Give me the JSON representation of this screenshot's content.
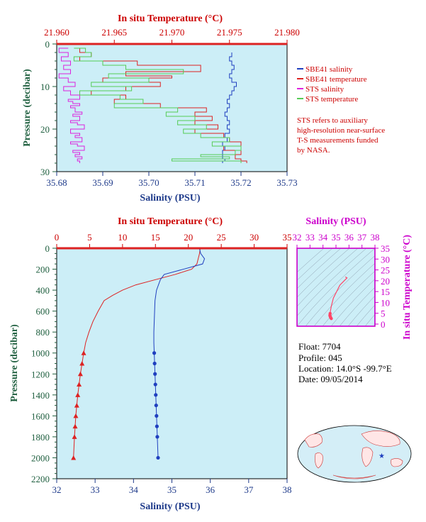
{
  "chart_data": [
    {
      "id": "top",
      "type": "line",
      "x_bottom": {
        "label": "Salinity (PSU)",
        "range": [
          35.68,
          35.73
        ],
        "ticks": [
          "35.68",
          "35.69",
          "35.70",
          "35.71",
          "35.72",
          "35.73"
        ]
      },
      "x_top": {
        "label": "In situ Temperature (°C)",
        "range": [
          21.96,
          21.98
        ],
        "ticks": [
          "21.960",
          "21.965",
          "21.970",
          "21.975",
          "21.980"
        ]
      },
      "y": {
        "label": "Pressure (decibar)",
        "range": [
          0,
          30
        ],
        "inverted": true,
        "ticks": [
          "0",
          "10",
          "20",
          "30"
        ]
      },
      "legend": {
        "position": "right",
        "items": [
          {
            "label": "SBE41 salinity",
            "color": "#1f3fbf"
          },
          {
            "label": "SBE41 temperature",
            "color": "#dd2222"
          },
          {
            "label": "STS salinity",
            "color": "#dd22dd"
          },
          {
            "label": "STS temperature",
            "color": "#55cc55"
          }
        ]
      },
      "note": [
        "STS refers to auxiliary",
        "high-resolution near-surface",
        "T-S measurements funded",
        "by NASA."
      ],
      "series": [
        {
          "name": "SBE41 salinity",
          "color": "#1f3fbf",
          "axis": "salinity",
          "x": [
            35.718,
            35.718,
            35.7175,
            35.718,
            35.7185,
            35.718,
            35.7175,
            35.718,
            35.719,
            35.7185,
            35.718,
            35.7175,
            35.717,
            35.7175,
            35.717,
            35.7165,
            35.717,
            35.7175,
            35.717,
            35.7175,
            35.7165,
            35.717,
            35.716,
            35.7165,
            35.716,
            35.716,
            35.7165,
            35.716
          ],
          "y": [
            2,
            3,
            4,
            5,
            6,
            7,
            8,
            9,
            10,
            11,
            12,
            13,
            14,
            15,
            16,
            17,
            18,
            19,
            20,
            21,
            22,
            23,
            24,
            25,
            26,
            27,
            27.5,
            28
          ]
        },
        {
          "name": "SBE41 temperature",
          "color": "#dd2222",
          "axis": "temperature",
          "x": [
            21.9625,
            21.962,
            21.963,
            21.962,
            21.967,
            21.9725,
            21.966,
            21.97,
            21.964,
            21.969,
            21.966,
            21.963,
            21.966,
            21.965,
            21.969,
            21.973,
            21.972,
            21.9735,
            21.972,
            21.974,
            21.972,
            21.9745,
            21.975,
            21.976,
            21.9745,
            21.976,
            21.9755,
            21.976,
            21.9765
          ],
          "y": [
            1,
            2,
            3,
            4,
            5,
            6.5,
            7.5,
            8,
            9,
            10,
            11,
            12,
            13,
            14,
            15,
            16,
            17,
            18,
            19,
            20,
            21,
            22,
            23,
            24,
            25,
            26,
            27,
            27.5,
            28
          ]
        },
        {
          "name": "STS salinity",
          "color": "#dd22dd",
          "axis": "salinity",
          "x": [
            35.6825,
            35.6805,
            35.6825,
            35.681,
            35.683,
            35.6815,
            35.683,
            35.6805,
            35.6825,
            35.684,
            35.6815,
            35.683,
            35.685,
            35.6825,
            35.6835,
            35.685,
            35.683,
            35.684,
            35.6855,
            35.6835,
            35.685,
            35.683,
            35.6845,
            35.686,
            35.683,
            35.685,
            35.684,
            35.6855,
            35.683,
            35.6845,
            35.686,
            35.6835,
            35.685,
            35.684,
            35.6855,
            35.6845,
            35.685
          ],
          "y": [
            1,
            2,
            3,
            4,
            5,
            6,
            7,
            8,
            9,
            10,
            11,
            12,
            13,
            13.5,
            14,
            14.5,
            15,
            16,
            16.5,
            17,
            18,
            18.5,
            19,
            20,
            21,
            21.5,
            22,
            23,
            23.5,
            24,
            25,
            25.5,
            26,
            26.5,
            27,
            27.5,
            28
          ]
        },
        {
          "name": "STS temperature",
          "color": "#55cc55",
          "axis": "temperature",
          "x": [
            21.9615,
            21.9625,
            21.963,
            21.9615,
            21.964,
            21.966,
            21.971,
            21.9645,
            21.968,
            21.963,
            21.9665,
            21.962,
            21.9655,
            21.9675,
            21.965,
            21.9705,
            21.9695,
            21.972,
            21.9705,
            21.973,
            21.971,
            21.9725,
            21.975,
            21.9735,
            21.976,
            21.9755,
            21.9725,
            21.975,
            21.97,
            21.976
          ],
          "y": [
            1,
            2,
            3,
            4,
            5,
            6,
            7,
            8,
            9,
            10,
            11,
            12,
            13,
            14,
            15,
            16,
            17,
            18,
            19,
            20,
            21,
            22,
            23,
            24,
            25,
            26,
            26.5,
            27,
            27.5,
            28
          ]
        }
      ]
    },
    {
      "id": "profile",
      "type": "line",
      "x_bottom": {
        "label": "Salinity (PSU)",
        "range": [
          32,
          38
        ],
        "ticks": [
          "32",
          "33",
          "34",
          "35",
          "36",
          "37",
          "38"
        ]
      },
      "x_top": {
        "label": "In situ Temperature (°C)",
        "range": [
          0,
          35
        ],
        "ticks": [
          "0",
          "5",
          "10",
          "15",
          "20",
          "25",
          "30",
          "35"
        ]
      },
      "y": {
        "label": "Pressure (decibar)",
        "range": [
          0,
          2200
        ],
        "inverted": true,
        "ticks": [
          "0",
          "200",
          "400",
          "600",
          "800",
          "1000",
          "1200",
          "1400",
          "1600",
          "1800",
          "2000",
          "2200"
        ]
      },
      "series": [
        {
          "name": "",
          "color": "#dd2222",
          "axis": "temperature",
          "temperature": [
            21.8,
            21.7,
            21.5,
            21.3,
            20.5,
            18.0,
            15.0,
            12.0,
            10.0,
            8.5,
            7.2,
            6.3,
            5.5,
            4.9,
            4.4,
            4.1,
            3.85,
            3.6,
            3.4,
            3.2,
            3.05,
            2.9,
            2.8,
            2.7,
            2.55
          ],
          "pressure": [
            5,
            50,
            100,
            150,
            200,
            250,
            300,
            350,
            400,
            450,
            500,
            600,
            700,
            800,
            900,
            1000,
            1100,
            1200,
            1300,
            1400,
            1500,
            1600,
            1700,
            1800,
            2000
          ]
        },
        {
          "name": "",
          "color": "#1f3fbf",
          "axis": "salinity",
          "salinity": [
            35.72,
            35.75,
            35.85,
            35.8,
            35.3,
            34.8,
            34.7,
            34.65,
            34.6,
            34.58,
            34.56,
            34.55,
            34.54,
            34.53,
            34.53,
            34.54,
            34.55,
            34.56,
            34.57,
            34.58,
            34.59,
            34.6,
            34.61,
            34.62,
            34.64
          ],
          "pressure": [
            5,
            50,
            100,
            150,
            200,
            250,
            300,
            350,
            400,
            450,
            500,
            600,
            700,
            800,
            900,
            1000,
            1100,
            1200,
            1300,
            1400,
            1500,
            1600,
            1700,
            1800,
            2000
          ]
        }
      ]
    },
    {
      "id": "ts",
      "type": "scatter",
      "x_top": {
        "label": "Salinity (PSU)",
        "range": [
          32,
          38
        ],
        "ticks": [
          "32",
          "33",
          "34",
          "35",
          "36",
          "37",
          "38"
        ]
      },
      "y_right": {
        "label": "In situ Temperature (°C)",
        "range": [
          -1,
          35
        ],
        "ticks": [
          "0",
          "5",
          "10",
          "15",
          "20",
          "25",
          "30",
          "35"
        ]
      },
      "series": [
        {
          "name": "",
          "color": "#ff4466",
          "salinity": [
            35.72,
            35.85,
            35.3,
            34.8,
            34.65,
            34.58,
            34.55,
            34.53,
            34.55,
            34.58,
            34.6,
            34.64
          ],
          "temperature": [
            21.8,
            21.3,
            18.0,
            12.0,
            8.5,
            6.3,
            4.9,
            4.1,
            3.6,
            3.2,
            2.9,
            2.55
          ]
        }
      ]
    }
  ],
  "float_info": {
    "float": "Float:  7704",
    "profile": "Profile:  045",
    "location": "Location:  14.0°S  -99.7°E",
    "date": "Date:  09/05/2014"
  },
  "map": {
    "marker_lat": -14.0,
    "marker_lon": -99.7,
    "marker_color": "#1f3fbf"
  }
}
